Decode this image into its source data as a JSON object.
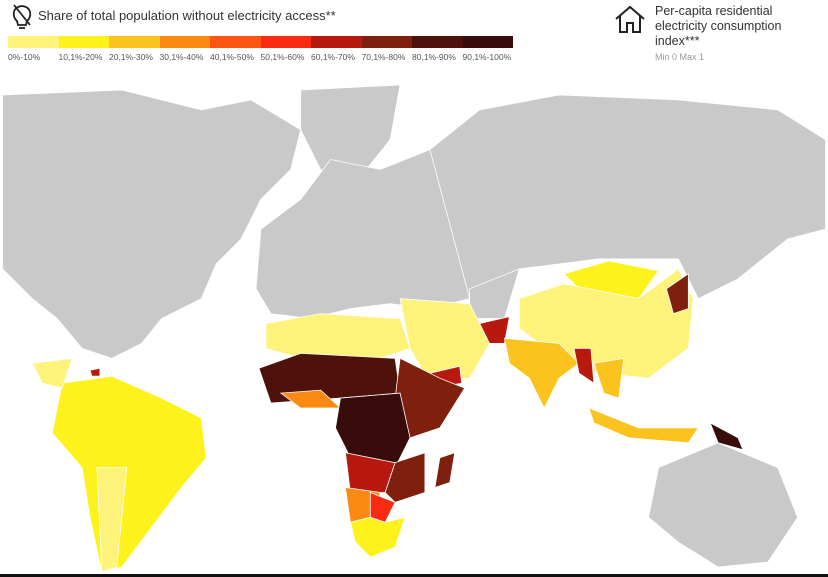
{
  "header": {
    "title": "Share of total population without electricity access**",
    "icon": "lightbulb-icon"
  },
  "legend": [
    {
      "label": "0%-10%",
      "color": "#fdf27a"
    },
    {
      "label": "10,1%-20%",
      "color": "#fdf21c"
    },
    {
      "label": "20,1%-30%",
      "color": "#fcc21e"
    },
    {
      "label": "30,1%-40%",
      "color": "#fb8a14"
    },
    {
      "label": "40,1%-50%",
      "color": "#fc5514"
    },
    {
      "label": "50,1%-60%",
      "color": "#f82a12"
    },
    {
      "label": "60,1%-70%",
      "color": "#b8190f"
    },
    {
      "label": "70,1%-80%",
      "color": "#7f1f0e"
    },
    {
      "label": "80,1%-90%",
      "color": "#4e120b"
    },
    {
      "label": "90,1%-100%",
      "color": "#380c0a"
    }
  ],
  "index": {
    "title": "Per-capita residential electricity consumption index***",
    "range": "Min 0 Max 1",
    "icon": "house-icon"
  },
  "map": {
    "no_data_color": "#c9c9c9",
    "ocean_color": "#ffffff"
  }
}
